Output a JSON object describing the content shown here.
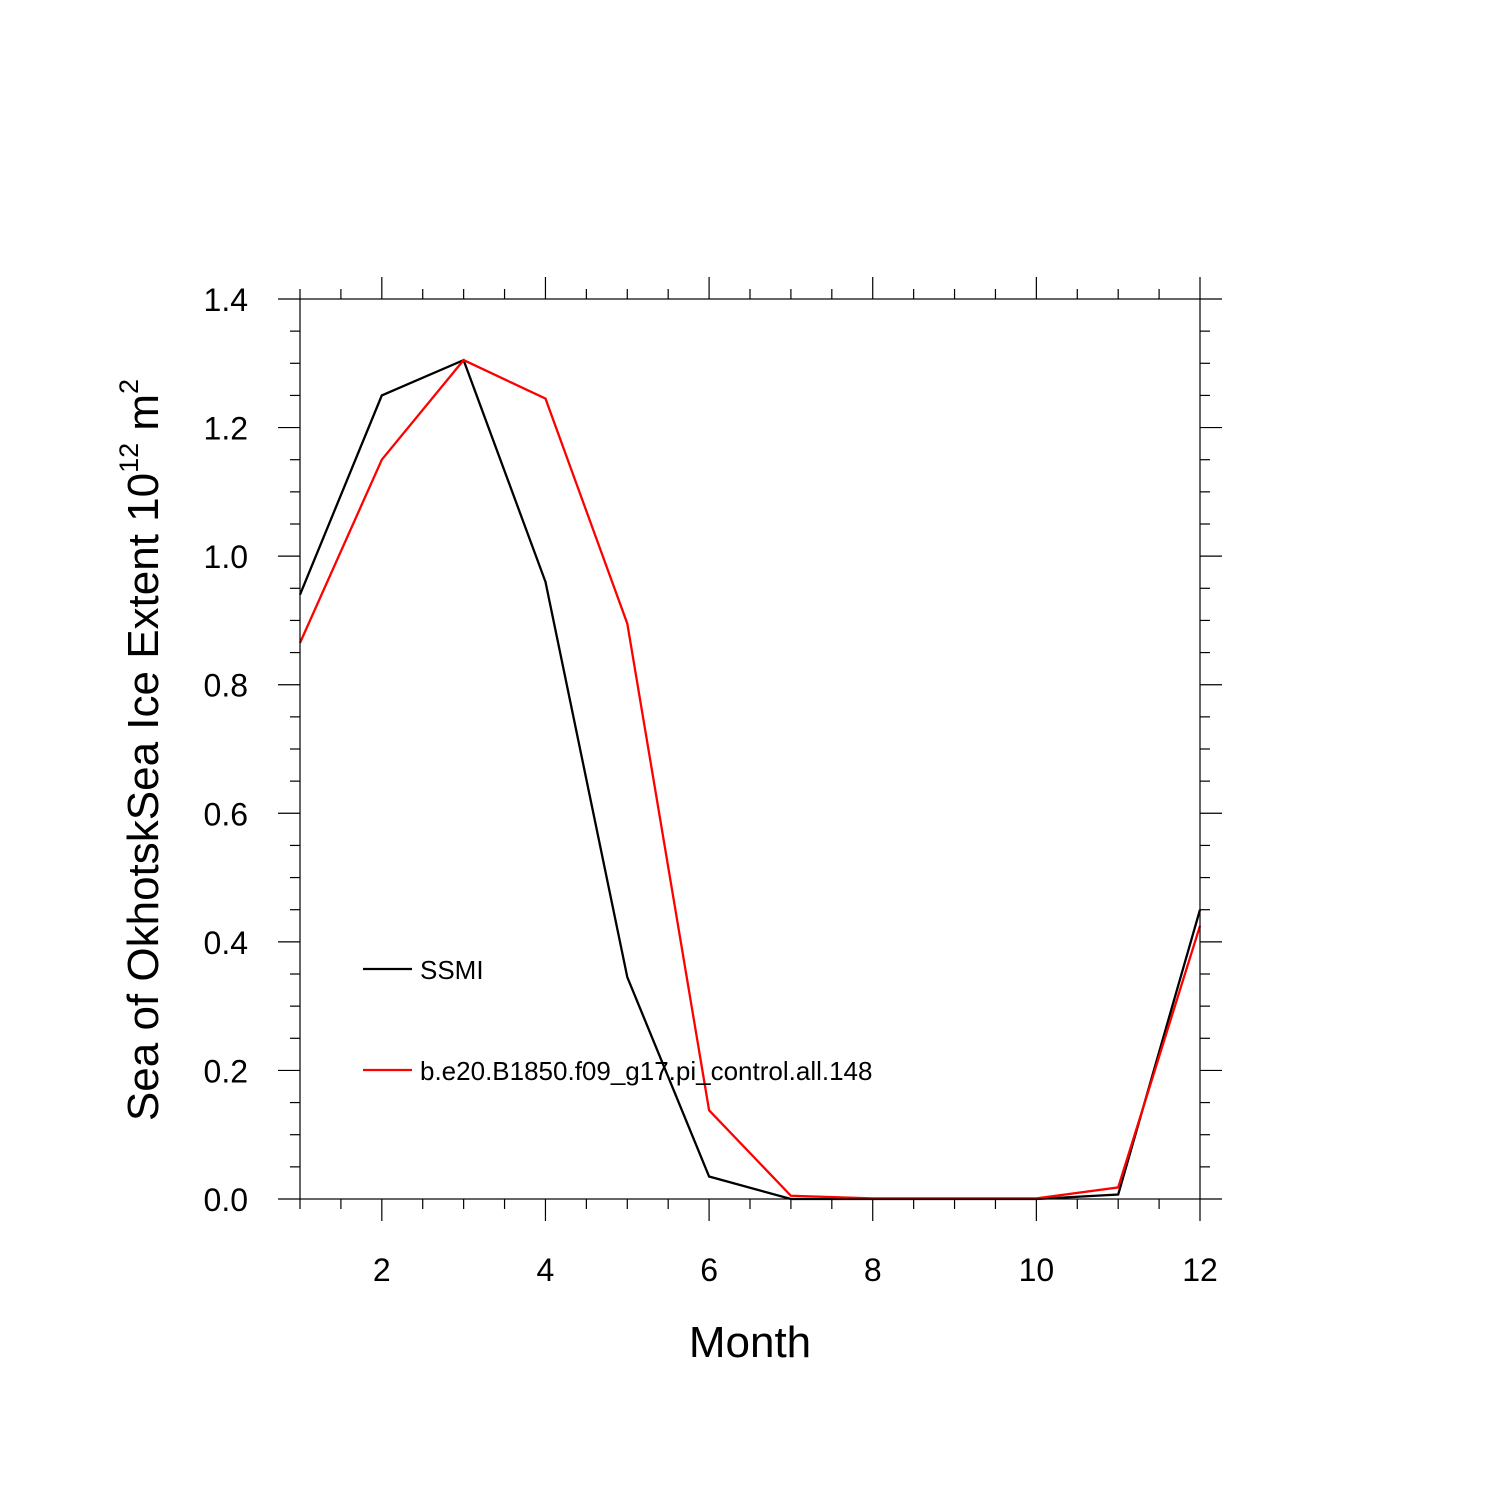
{
  "chart_data": {
    "type": "line",
    "title": "",
    "xlabel": "Month",
    "ylabel": {
      "text": "Sea of OkhotskSea Ice Extent 10",
      "superscript": "12",
      "unit": " m",
      "unit_superscript": "2"
    },
    "xlim": [
      1,
      12
    ],
    "ylim": [
      0,
      1.4
    ],
    "x": [
      1,
      2,
      3,
      4,
      5,
      6,
      7,
      8,
      9,
      10,
      11,
      12
    ],
    "xticks": [
      "2",
      "4",
      "6",
      "8",
      "10",
      "12"
    ],
    "yticks": [
      "0.0",
      "0.2",
      "0.4",
      "0.6",
      "0.8",
      "1.0",
      "1.2",
      "1.4"
    ],
    "grid": false,
    "legend_position": "lower-left inside",
    "series": [
      {
        "name": "SSMI",
        "color": "#000000",
        "values": [
          0.94,
          1.25,
          1.305,
          0.96,
          0.345,
          0.035,
          0.0,
          0.0,
          0.0,
          0.0,
          0.007,
          0.45
        ]
      },
      {
        "name": "b.e20.B1850.f09_g17.pi_control.all.148",
        "color": "#ff0000",
        "values": [
          0.865,
          1.15,
          1.305,
          1.245,
          0.895,
          0.138,
          0.005,
          0.001,
          0.001,
          0.001,
          0.018,
          0.425
        ]
      }
    ]
  }
}
